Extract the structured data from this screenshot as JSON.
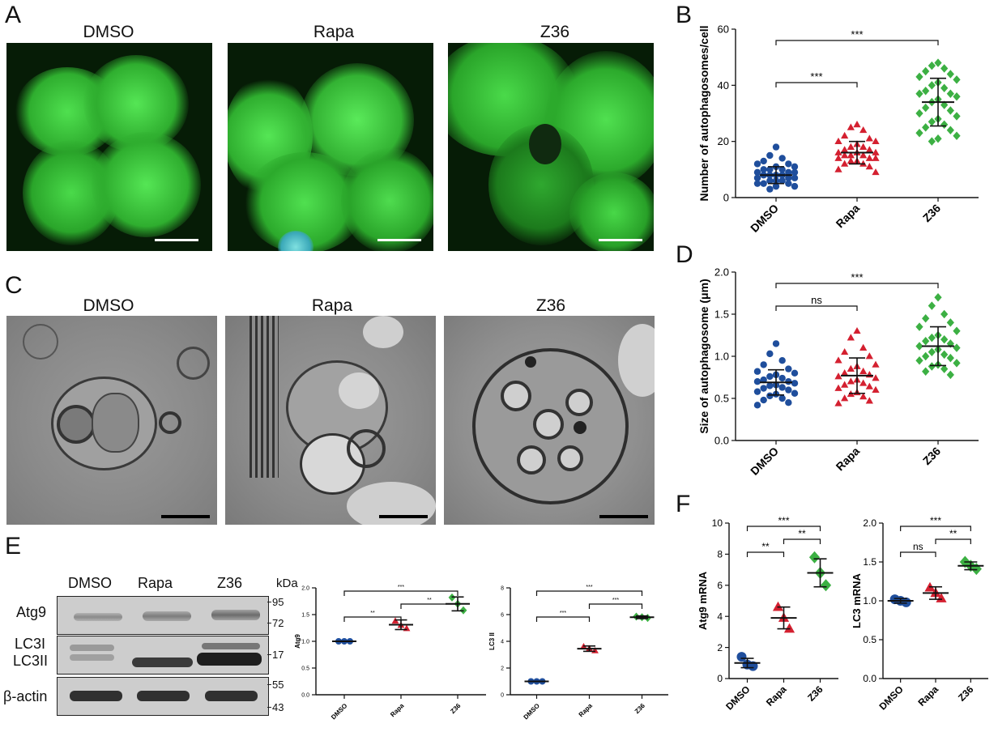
{
  "panels": {
    "A": {
      "letter": "A",
      "titles": [
        "DMSO",
        "Rapa",
        "Z36"
      ]
    },
    "B": {
      "letter": "B"
    },
    "C": {
      "letter": "C",
      "titles": [
        "DMSO",
        "Rapa",
        "Z36"
      ]
    },
    "D": {
      "letter": "D"
    },
    "E": {
      "letter": "E",
      "lanes": [
        "DMSO",
        "Rapa",
        "Z36"
      ],
      "kda_label": "kDa",
      "rows": [
        "Atg9",
        "LC3I",
        "LC3II",
        "β-actin"
      ],
      "markers": [
        "95",
        "72",
        "17",
        "55",
        "43"
      ]
    },
    "F": {
      "letter": "F"
    }
  },
  "colors": {
    "dmso": "#1f4e9c",
    "rapa": "#d42030",
    "z36": "#3cb043",
    "fluor": "#3fd03f"
  },
  "chart_data": [
    {
      "id": "B",
      "type": "scatter",
      "ylabel": "Number of autophagosomes/cell",
      "categories": [
        "DMSO",
        "Rapa",
        "Z36"
      ],
      "ylim": [
        0,
        60
      ],
      "yticks": [
        0,
        20,
        40,
        60
      ],
      "series": [
        {
          "mean": 8,
          "sd": 3,
          "points": [
            18,
            15,
            14,
            13,
            12,
            12,
            11,
            11,
            10,
            10,
            10,
            9,
            9,
            9,
            8,
            8,
            8,
            8,
            7,
            7,
            7,
            6,
            6,
            6,
            5,
            5,
            5,
            4,
            4,
            3
          ]
        },
        {
          "mean": 16,
          "sd": 4,
          "points": [
            26,
            25,
            24,
            22,
            21,
            20,
            20,
            19,
            18,
            18,
            17,
            17,
            16,
            16,
            16,
            15,
            15,
            15,
            14,
            14,
            14,
            13,
            13,
            12,
            12,
            11,
            10,
            9
          ]
        },
        {
          "mean": 34,
          "sd": 8.5,
          "points": [
            48,
            47,
            46,
            45,
            44,
            43,
            42,
            41,
            40,
            39,
            38,
            37,
            37,
            36,
            35,
            34,
            33,
            32,
            31,
            30,
            29,
            28,
            27,
            26,
            25,
            24,
            23,
            22,
            21,
            20
          ]
        }
      ],
      "significance": [
        {
          "from": 0,
          "to": 1,
          "label": "***"
        },
        {
          "from": 0,
          "to": 2,
          "label": "***"
        }
      ]
    },
    {
      "id": "D",
      "type": "scatter",
      "ylabel": "Size of autophagosome (μm)",
      "categories": [
        "DMSO",
        "Rapa",
        "Z36"
      ],
      "ylim": [
        0,
        2.0
      ],
      "yticks": [
        "0.0",
        "0.5",
        "1.0",
        "1.5",
        "2.0"
      ],
      "series": [
        {
          "mean": 0.69,
          "sd": 0.15,
          "points": [
            1.15,
            1.03,
            0.95,
            0.9,
            0.85,
            0.82,
            0.8,
            0.78,
            0.76,
            0.74,
            0.72,
            0.7,
            0.7,
            0.68,
            0.66,
            0.65,
            0.63,
            0.62,
            0.6,
            0.58,
            0.56,
            0.55,
            0.53,
            0.5,
            0.48,
            0.45,
            0.42
          ]
        },
        {
          "mean": 0.77,
          "sd": 0.21,
          "points": [
            1.3,
            1.22,
            1.1,
            1.05,
            1.0,
            0.95,
            0.9,
            0.88,
            0.85,
            0.82,
            0.8,
            0.78,
            0.76,
            0.74,
            0.72,
            0.7,
            0.68,
            0.66,
            0.64,
            0.62,
            0.6,
            0.57,
            0.55,
            0.52,
            0.5,
            0.47,
            0.44
          ]
        },
        {
          "mean": 1.12,
          "sd": 0.23,
          "points": [
            1.7,
            1.6,
            1.5,
            1.45,
            1.4,
            1.35,
            1.3,
            1.25,
            1.22,
            1.2,
            1.18,
            1.15,
            1.12,
            1.1,
            1.08,
            1.05,
            1.02,
            1.0,
            0.98,
            0.95,
            0.92,
            0.9,
            0.88,
            0.85,
            0.82,
            0.78
          ]
        }
      ],
      "significance": [
        {
          "from": 0,
          "to": 1,
          "label": "ns"
        },
        {
          "from": 0,
          "to": 2,
          "label": "***"
        }
      ]
    },
    {
      "id": "E1",
      "type": "scatter",
      "ylabel": "Atg9",
      "categories": [
        "DMSO",
        "Rapa",
        "Z36"
      ],
      "ylim": [
        0,
        2.0
      ],
      "yticks": [
        "0.0",
        "0.5",
        "1.0",
        "1.5",
        "2.0"
      ],
      "series": [
        {
          "mean": 1.0,
          "sd": 0,
          "points": [
            1.0,
            1.0,
            1.0
          ]
        },
        {
          "mean": 1.31,
          "sd": 0.09,
          "points": [
            1.38,
            1.3,
            1.24
          ]
        },
        {
          "mean": 1.7,
          "sd": 0.13,
          "points": [
            1.82,
            1.7,
            1.58
          ]
        }
      ],
      "significance": [
        {
          "from": 0,
          "to": 1,
          "label": "**"
        },
        {
          "from": 1,
          "to": 2,
          "label": "**"
        },
        {
          "from": 0,
          "to": 2,
          "label": "***"
        }
      ]
    },
    {
      "id": "E2",
      "type": "scatter",
      "ylabel": "LC3 II",
      "categories": [
        "DMSO",
        "Rapa",
        "Z36"
      ],
      "ylim": [
        0,
        8
      ],
      "yticks": [
        "0",
        "2",
        "4",
        "6",
        "8"
      ],
      "series": [
        {
          "mean": 1.0,
          "sd": 0,
          "points": [
            1.0,
            1.0,
            1.0
          ]
        },
        {
          "mean": 3.45,
          "sd": 0.2,
          "points": [
            3.6,
            3.45,
            3.3
          ]
        },
        {
          "mean": 5.8,
          "sd": 0.1,
          "points": [
            5.85,
            5.8,
            5.75
          ]
        }
      ],
      "significance": [
        {
          "from": 0,
          "to": 1,
          "label": "***"
        },
        {
          "from": 1,
          "to": 2,
          "label": "***"
        },
        {
          "from": 0,
          "to": 2,
          "label": "***"
        }
      ]
    },
    {
      "id": "F1",
      "type": "scatter",
      "ylabel": "Atg9 mRNA",
      "categories": [
        "DMSO",
        "Rapa",
        "Z36"
      ],
      "ylim": [
        0,
        10
      ],
      "yticks": [
        "0",
        "2",
        "4",
        "6",
        "8",
        "10"
      ],
      "series": [
        {
          "mean": 1.0,
          "sd": 0.3,
          "points": [
            1.4,
            0.9,
            0.8
          ]
        },
        {
          "mean": 3.9,
          "sd": 0.7,
          "points": [
            4.6,
            3.9,
            3.2
          ]
        },
        {
          "mean": 6.8,
          "sd": 0.9,
          "points": [
            7.8,
            6.8,
            6.0
          ]
        }
      ],
      "significance": [
        {
          "from": 0,
          "to": 1,
          "label": "**"
        },
        {
          "from": 1,
          "to": 2,
          "label": "**"
        },
        {
          "from": 0,
          "to": 2,
          "label": "***"
        }
      ]
    },
    {
      "id": "F2",
      "type": "scatter",
      "ylabel": "LC3 mRNA",
      "categories": [
        "DMSO",
        "Rapa",
        "Z36"
      ],
      "ylim": [
        0,
        2.0
      ],
      "yticks": [
        "0.0",
        "0.5",
        "1.0",
        "1.5",
        "2.0"
      ],
      "series": [
        {
          "mean": 1.0,
          "sd": 0.03,
          "points": [
            1.02,
            1.0,
            0.98
          ]
        },
        {
          "mean": 1.1,
          "sd": 0.08,
          "points": [
            1.17,
            1.1,
            1.03
          ]
        },
        {
          "mean": 1.45,
          "sd": 0.05,
          "points": [
            1.5,
            1.45,
            1.41
          ]
        }
      ],
      "significance": [
        {
          "from": 0,
          "to": 1,
          "label": "ns"
        },
        {
          "from": 1,
          "to": 2,
          "label": "**"
        },
        {
          "from": 0,
          "to": 2,
          "label": "***"
        }
      ]
    }
  ]
}
